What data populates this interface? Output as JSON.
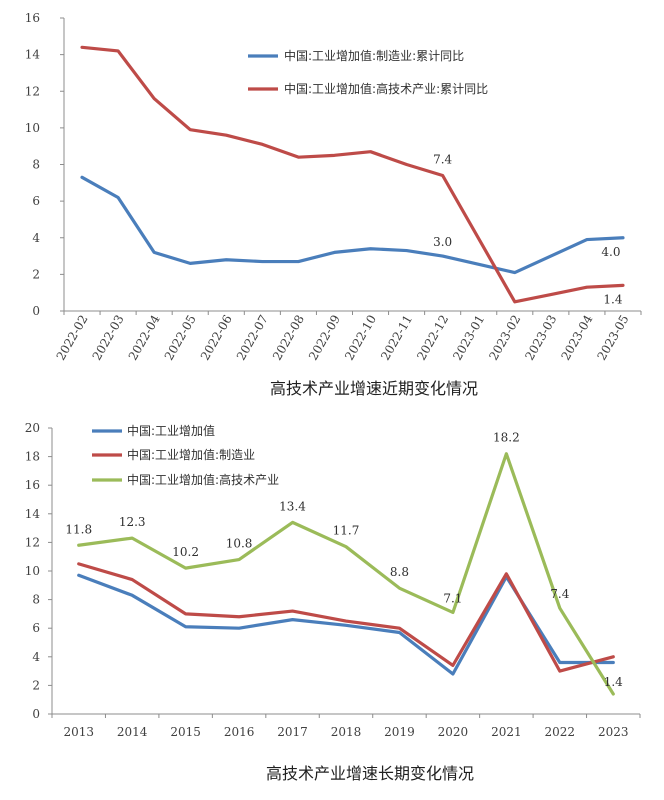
{
  "chart_data": [
    {
      "type": "line",
      "title": "高技术产业增速近期变化情况",
      "categories": [
        "2022-02",
        "2022-03",
        "2022-04",
        "2022-05",
        "2022-06",
        "2022-07",
        "2022-08",
        "2022-09",
        "2022-10",
        "2022-11",
        "2022-12",
        "2023-01",
        "2023-02",
        "2023-03",
        "2023-04",
        "2023-05"
      ],
      "ylim": [
        0,
        16
      ],
      "yticks": [
        0,
        2,
        4,
        6,
        8,
        10,
        12,
        14,
        16
      ],
      "grid": false,
      "legend": "top-right",
      "series": [
        {
          "name": "中国:工业增加值:制造业:累计同比",
          "color": "#4a7ebb",
          "values": [
            7.3,
            6.2,
            3.2,
            2.6,
            2.8,
            2.7,
            2.7,
            3.2,
            3.4,
            3.3,
            3.0,
            null,
            2.1,
            3.0,
            3.9,
            4.0
          ]
        },
        {
          "name": "中国:工业增加值:高技术产业:累计同比",
          "color": "#be4b48",
          "values": [
            14.4,
            14.2,
            11.6,
            9.9,
            9.6,
            9.1,
            8.4,
            8.5,
            8.7,
            8.0,
            7.4,
            null,
            0.5,
            0.9,
            1.3,
            1.4
          ]
        }
      ],
      "annotations": [
        "7.4",
        "3.0",
        "4.0",
        "1.4"
      ]
    },
    {
      "type": "line",
      "title": "高技术产业增速长期变化情况",
      "categories": [
        "2013",
        "2014",
        "2015",
        "2016",
        "2017",
        "2018",
        "2019",
        "2020",
        "2021",
        "2022",
        "2023"
      ],
      "ylim": [
        0,
        20
      ],
      "yticks": [
        0,
        2,
        4,
        6,
        8,
        10,
        12,
        14,
        16,
        18,
        20
      ],
      "grid": false,
      "legend": "top-left",
      "series": [
        {
          "name": "中国:工业增加值",
          "color": "#4a7ebb",
          "values": [
            9.7,
            8.3,
            6.1,
            6.0,
            6.6,
            6.2,
            5.7,
            2.8,
            9.6,
            3.6,
            3.6
          ]
        },
        {
          "name": "中国:工业增加值:制造业",
          "color": "#be4b48",
          "values": [
            10.5,
            9.4,
            7.0,
            6.8,
            7.2,
            6.5,
            6.0,
            3.4,
            9.8,
            3.0,
            4.0
          ]
        },
        {
          "name": "中国:工业增加值:高技术产业",
          "color": "#9bbb59",
          "values": [
            11.8,
            12.3,
            10.2,
            10.8,
            13.4,
            11.7,
            8.8,
            7.1,
            18.2,
            7.4,
            1.4
          ]
        }
      ],
      "annotations": [
        "11.8",
        "12.3",
        "10.2",
        "10.8",
        "13.4",
        "11.7",
        "8.8",
        "7.1",
        "18.2",
        "7.4",
        "1.4"
      ]
    }
  ]
}
